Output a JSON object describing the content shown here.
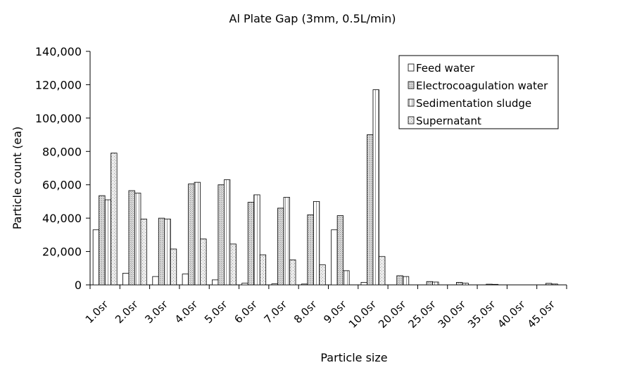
{
  "chart_data": {
    "type": "bar",
    "title": "Al Plate Gap (3mm, 0.5L/min)",
    "xlabel": "Particle size",
    "ylabel": "Particle count (ea)",
    "ylim": [
      0,
      140000
    ],
    "yticks": [
      0,
      20000,
      40000,
      60000,
      80000,
      100000,
      120000,
      140000
    ],
    "ytick_labels": [
      "0",
      "20,000",
      "40,000",
      "60,000",
      "80,000",
      "100,000",
      "120,000",
      "140,000"
    ],
    "grid": false,
    "legend_position": "top-right",
    "categories": [
      "1.0㏛",
      "2.0㏛",
      "3.0㏛",
      "4.0㏛",
      "5.0㏛",
      "6.0㏛",
      "7.0㏛",
      "8.0㏛",
      "9.0㏛",
      "10.0㏛",
      "20.0㏛",
      "25.0㏛",
      "30.0㏛",
      "35.0㏛",
      "40.0㏛",
      "45.0㏛"
    ],
    "series": [
      {
        "name": "Feed water",
        "pattern": "blank",
        "values": [
          33000,
          7000,
          5000,
          6500,
          3000,
          1000,
          600,
          500,
          33000,
          1500,
          0,
          0,
          0,
          0,
          0,
          0
        ]
      },
      {
        "name": "Electrocoagulation water",
        "pattern": "gray",
        "values": [
          53500,
          56500,
          40000,
          60500,
          60000,
          49500,
          46000,
          42000,
          41500,
          90000,
          5500,
          2000,
          1500,
          400,
          0,
          900
        ]
      },
      {
        "name": "Sedimentation sludge",
        "pattern": "vlines",
        "values": [
          51000,
          55000,
          39500,
          61500,
          63000,
          54000,
          52500,
          50000,
          8500,
          117000,
          5000,
          1700,
          1000,
          300,
          0,
          500
        ]
      },
      {
        "name": "Supernatant",
        "pattern": "dots",
        "values": [
          79000,
          39500,
          21500,
          27500,
          24500,
          18000,
          15000,
          12000,
          0,
          17000,
          0,
          0,
          0,
          0,
          0,
          0
        ]
      }
    ]
  }
}
